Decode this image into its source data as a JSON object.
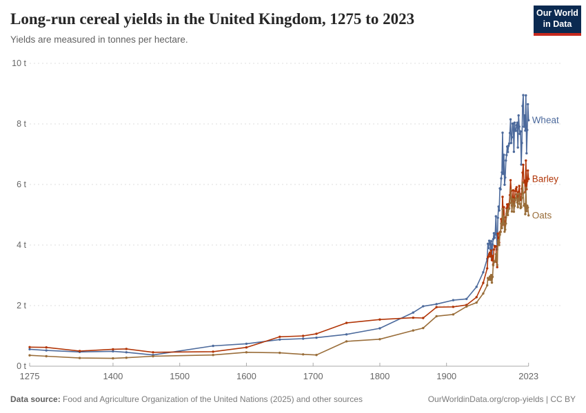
{
  "header": {
    "title": "Long-run cereal yields in the United Kingdom, 1275 to 2023",
    "subtitle": "Yields are measured in tonnes per hectare."
  },
  "logo": {
    "line1": "Our World",
    "line2": "in Data",
    "bg_color": "#0b2a51",
    "accent_color": "#c7291e"
  },
  "footer": {
    "source_label": "Data source:",
    "source_text": " Food and Agriculture Organization of the United Nations (2025) and other sources",
    "link_text": "OurWorldinData.org/crop-yields | CC BY"
  },
  "chart_data": {
    "type": "line",
    "title": "Long-run cereal yields in the United Kingdom, 1275 to 2023",
    "xlabel": "",
    "ylabel": "tonnes per hectare",
    "grid": "dashed-horizontal",
    "legend_position": "line-end-labels",
    "colors": {
      "grid": "#dcdcdc",
      "axis": "#a9a9a9",
      "tick_text": "#666666"
    },
    "x_axis": {
      "range": [
        1275,
        2023
      ],
      "ticks": [
        1275,
        1400,
        1500,
        1600,
        1700,
        1800,
        1900,
        2023
      ]
    },
    "y_axis": {
      "range": [
        0,
        10
      ],
      "ticks": [
        0,
        2,
        4,
        6,
        8,
        10
      ],
      "unit": "t"
    },
    "series": [
      {
        "name": "Wheat",
        "color": "#4C6A9C",
        "points": [
          [
            1275,
            0.56
          ],
          [
            1300,
            0.52
          ],
          [
            1350,
            0.47
          ],
          [
            1400,
            0.49
          ],
          [
            1420,
            0.46
          ],
          [
            1460,
            0.37
          ],
          [
            1550,
            0.67
          ],
          [
            1600,
            0.74
          ],
          [
            1650,
            0.88
          ],
          [
            1685,
            0.91
          ],
          [
            1705,
            0.94
          ],
          [
            1750,
            1.05
          ],
          [
            1800,
            1.25
          ],
          [
            1850,
            1.77
          ],
          [
            1865,
            1.98
          ],
          [
            1885,
            2.05
          ],
          [
            1910,
            2.18
          ],
          [
            1930,
            2.22
          ],
          [
            1945,
            2.62
          ],
          [
            1955,
            3.1
          ],
          [
            1961,
            3.54
          ],
          [
            1962,
            4.04
          ],
          [
            1963,
            3.9
          ],
          [
            1964,
            4.14
          ],
          [
            1965,
            4.06
          ],
          [
            1966,
            3.85
          ],
          [
            1967,
            4.13
          ],
          [
            1968,
            3.55
          ],
          [
            1969,
            4.02
          ],
          [
            1970,
            4.19
          ],
          [
            1971,
            4.39
          ],
          [
            1972,
            4.24
          ],
          [
            1973,
            4.38
          ],
          [
            1974,
            4.95
          ],
          [
            1975,
            4.34
          ],
          [
            1976,
            3.85
          ],
          [
            1977,
            4.9
          ],
          [
            1978,
            5.27
          ],
          [
            1979,
            5.14
          ],
          [
            1980,
            5.87
          ],
          [
            1981,
            5.84
          ],
          [
            1982,
            6.2
          ],
          [
            1983,
            6.4
          ],
          [
            1984,
            7.71
          ],
          [
            1985,
            6.35
          ],
          [
            1986,
            6.98
          ],
          [
            1987,
            5.99
          ],
          [
            1988,
            6.23
          ],
          [
            1989,
            6.79
          ],
          [
            1990,
            6.97
          ],
          [
            1991,
            7.25
          ],
          [
            1992,
            7.07
          ],
          [
            1993,
            7.28
          ],
          [
            1994,
            7.35
          ],
          [
            1995,
            7.7
          ],
          [
            1996,
            8.15
          ],
          [
            1997,
            7.37
          ],
          [
            1998,
            7.56
          ],
          [
            1999,
            8.01
          ],
          [
            2000,
            8.01
          ],
          [
            2001,
            7.08
          ],
          [
            2002,
            8.04
          ],
          [
            2003,
            7.78
          ],
          [
            2004,
            7.77
          ],
          [
            2005,
            7.96
          ],
          [
            2006,
            8.04
          ],
          [
            2007,
            7.22
          ],
          [
            2008,
            8.28
          ],
          [
            2009,
            7.91
          ],
          [
            2010,
            7.67
          ],
          [
            2011,
            7.75
          ],
          [
            2012,
            6.66
          ],
          [
            2013,
            7.37
          ],
          [
            2014,
            8.59
          ],
          [
            2015,
            8.95
          ],
          [
            2016,
            7.91
          ],
          [
            2017,
            8.28
          ],
          [
            2018,
            7.78
          ],
          [
            2019,
            8.94
          ],
          [
            2020,
            7.03
          ],
          [
            2021,
            7.8
          ],
          [
            2022,
            8.65
          ],
          [
            2023,
            8.12
          ]
        ]
      },
      {
        "name": "Barley",
        "color": "#B13507",
        "points": [
          [
            1275,
            0.63
          ],
          [
            1300,
            0.62
          ],
          [
            1350,
            0.5
          ],
          [
            1400,
            0.56
          ],
          [
            1420,
            0.57
          ],
          [
            1460,
            0.46
          ],
          [
            1550,
            0.48
          ],
          [
            1600,
            0.62
          ],
          [
            1650,
            0.97
          ],
          [
            1685,
            1.0
          ],
          [
            1705,
            1.07
          ],
          [
            1750,
            1.43
          ],
          [
            1800,
            1.54
          ],
          [
            1850,
            1.6
          ],
          [
            1865,
            1.59
          ],
          [
            1885,
            1.95
          ],
          [
            1910,
            1.96
          ],
          [
            1930,
            2.02
          ],
          [
            1945,
            2.28
          ],
          [
            1955,
            2.75
          ],
          [
            1961,
            3.23
          ],
          [
            1962,
            3.59
          ],
          [
            1963,
            3.63
          ],
          [
            1964,
            3.7
          ],
          [
            1965,
            3.75
          ],
          [
            1966,
            3.62
          ],
          [
            1967,
            3.82
          ],
          [
            1968,
            3.5
          ],
          [
            1969,
            3.64
          ],
          [
            1970,
            3.36
          ],
          [
            1971,
            3.85
          ],
          [
            1972,
            3.97
          ],
          [
            1973,
            3.95
          ],
          [
            1974,
            3.96
          ],
          [
            1975,
            3.44
          ],
          [
            1976,
            3.27
          ],
          [
            1977,
            4.38
          ],
          [
            1978,
            4.24
          ],
          [
            1979,
            4.08
          ],
          [
            1980,
            4.42
          ],
          [
            1981,
            4.44
          ],
          [
            1982,
            4.86
          ],
          [
            1983,
            4.64
          ],
          [
            1984,
            5.59
          ],
          [
            1985,
            5.01
          ],
          [
            1986,
            5.25
          ],
          [
            1987,
            4.65
          ],
          [
            1988,
            4.7
          ],
          [
            1989,
            4.91
          ],
          [
            1990,
            5.21
          ],
          [
            1991,
            5.34
          ],
          [
            1992,
            5.11
          ],
          [
            1993,
            5.35
          ],
          [
            1994,
            5.36
          ],
          [
            1995,
            5.65
          ],
          [
            1996,
            6.14
          ],
          [
            1997,
            5.79
          ],
          [
            1998,
            5.3
          ],
          [
            1999,
            5.55
          ],
          [
            2000,
            5.81
          ],
          [
            2001,
            5.36
          ],
          [
            2002,
            5.55
          ],
          [
            2003,
            5.78
          ],
          [
            2004,
            5.85
          ],
          [
            2005,
            5.91
          ],
          [
            2006,
            5.61
          ],
          [
            2007,
            5.45
          ],
          [
            2008,
            5.75
          ],
          [
            2009,
            5.95
          ],
          [
            2010,
            5.69
          ],
          [
            2011,
            5.49
          ],
          [
            2012,
            5.52
          ],
          [
            2013,
            5.86
          ],
          [
            2014,
            6.39
          ],
          [
            2015,
            6.65
          ],
          [
            2016,
            6.07
          ],
          [
            2017,
            6.13
          ],
          [
            2018,
            5.75
          ],
          [
            2019,
            6.79
          ],
          [
            2020,
            5.84
          ],
          [
            2021,
            6.11
          ],
          [
            2022,
            6.46
          ],
          [
            2023,
            6.18
          ]
        ]
      },
      {
        "name": "Oats",
        "color": "#996D39",
        "points": [
          [
            1275,
            0.36
          ],
          [
            1300,
            0.33
          ],
          [
            1350,
            0.27
          ],
          [
            1400,
            0.26
          ],
          [
            1420,
            0.28
          ],
          [
            1460,
            0.33
          ],
          [
            1550,
            0.37
          ],
          [
            1600,
            0.46
          ],
          [
            1650,
            0.44
          ],
          [
            1685,
            0.39
          ],
          [
            1705,
            0.37
          ],
          [
            1750,
            0.82
          ],
          [
            1800,
            0.89
          ],
          [
            1850,
            1.18
          ],
          [
            1865,
            1.26
          ],
          [
            1885,
            1.65
          ],
          [
            1910,
            1.71
          ],
          [
            1930,
            1.97
          ],
          [
            1945,
            2.1
          ],
          [
            1955,
            2.4
          ],
          [
            1961,
            2.67
          ],
          [
            1962,
            2.91
          ],
          [
            1963,
            2.86
          ],
          [
            1964,
            2.89
          ],
          [
            1965,
            2.96
          ],
          [
            1966,
            2.85
          ],
          [
            1967,
            3.01
          ],
          [
            1968,
            2.76
          ],
          [
            1969,
            2.95
          ],
          [
            1970,
            3.33
          ],
          [
            1971,
            3.43
          ],
          [
            1972,
            3.45
          ],
          [
            1973,
            3.48
          ],
          [
            1974,
            3.7
          ],
          [
            1975,
            3.55
          ],
          [
            1976,
            3.34
          ],
          [
            1977,
            4.1
          ],
          [
            1978,
            4.16
          ],
          [
            1979,
            4.0
          ],
          [
            1980,
            4.34
          ],
          [
            1981,
            4.43
          ],
          [
            1982,
            4.71
          ],
          [
            1983,
            4.56
          ],
          [
            1984,
            5.19
          ],
          [
            1985,
            4.69
          ],
          [
            1986,
            4.94
          ],
          [
            1987,
            4.44
          ],
          [
            1988,
            4.51
          ],
          [
            1989,
            4.71
          ],
          [
            1990,
            5.04
          ],
          [
            1991,
            5.16
          ],
          [
            1992,
            4.99
          ],
          [
            1993,
            5.18
          ],
          [
            1994,
            5.21
          ],
          [
            1995,
            5.39
          ],
          [
            1996,
            5.82
          ],
          [
            1997,
            5.55
          ],
          [
            1998,
            5.11
          ],
          [
            1999,
            5.35
          ],
          [
            2000,
            5.51
          ],
          [
            2001,
            5.1
          ],
          [
            2002,
            5.29
          ],
          [
            2003,
            5.48
          ],
          [
            2004,
            5.55
          ],
          [
            2005,
            5.67
          ],
          [
            2006,
            5.41
          ],
          [
            2007,
            5.25
          ],
          [
            2008,
            5.52
          ],
          [
            2009,
            5.7
          ],
          [
            2010,
            5.36
          ],
          [
            2011,
            5.22
          ],
          [
            2012,
            5.25
          ],
          [
            2013,
            5.56
          ],
          [
            2014,
            6.05
          ],
          [
            2015,
            5.71
          ],
          [
            2016,
            5.3
          ],
          [
            2017,
            5.35
          ],
          [
            2018,
            5.02
          ],
          [
            2019,
            5.89
          ],
          [
            2020,
            5.12
          ],
          [
            2021,
            5.3
          ],
          [
            2022,
            5.24
          ],
          [
            2023,
            4.98
          ]
        ]
      }
    ]
  }
}
